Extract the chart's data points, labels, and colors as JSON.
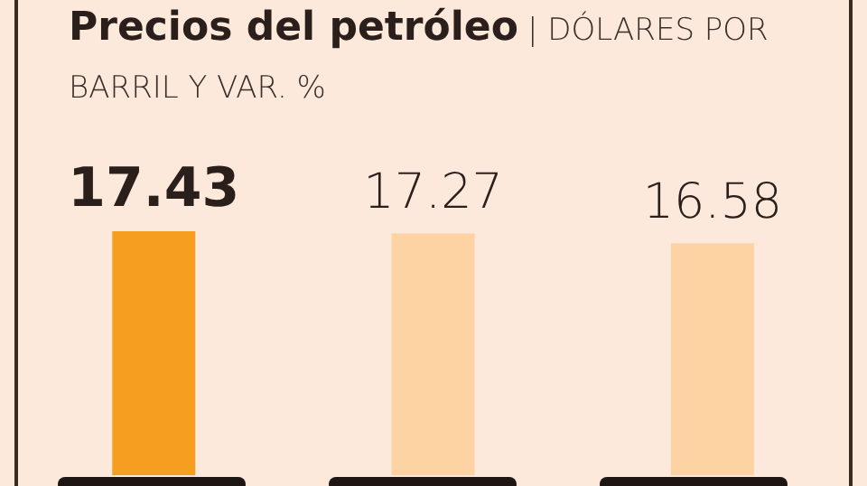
{
  "chart_data": {
    "type": "bar",
    "title": "Precios del petróleo",
    "subtitle": "| DÓLARES POR BARRIL Y VAR. %",
    "categories": [
      null,
      null,
      null
    ],
    "values": [
      17.43,
      17.27,
      16.58
    ],
    "colors": [
      "#f59e1f",
      "#fdd3a4",
      "#fdd3a4"
    ],
    "data_labels": true
  }
}
